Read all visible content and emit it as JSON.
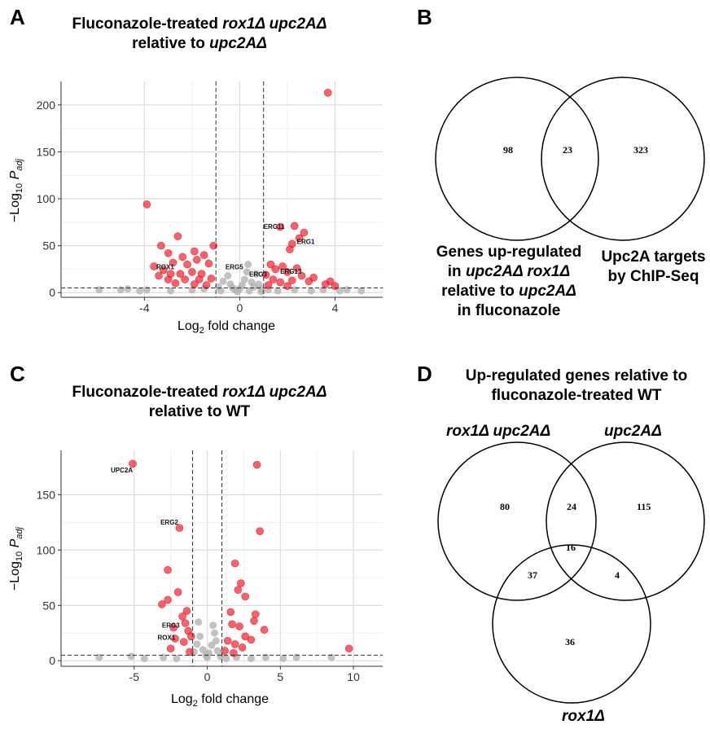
{
  "panels": {
    "A": {
      "letter": "A",
      "title_line1_pre": "Fluconazole-treated ",
      "title_line1_it": "rox1Δ upc2AΔ",
      "title_line2_pre": "relative to ",
      "title_line2_it": "upc2AΔ",
      "xlabel_main": "Log",
      "xlabel_sub": "2",
      "xlabel_rest": " fold change",
      "ylabel_main": "−Log",
      "ylabel_sub": "10",
      "ylabel_p": "P",
      "ylabel_adj": "adj"
    },
    "B": {
      "letter": "B",
      "left_label_l1": "Genes up-regulated",
      "left_label_l2a": "in ",
      "left_label_l2b": "upc2AΔ rox1Δ",
      "left_label_l3a": "relative to ",
      "left_label_l3b": "upc2AΔ",
      "left_label_l4": "in fluconazole",
      "right_label_l1": "Upc2A targets",
      "right_label_l2": "by ChIP-Seq",
      "counts": {
        "left_only": "98",
        "both": "23",
        "right_only": "323"
      }
    },
    "C": {
      "letter": "C",
      "title_line1_pre": "Fluconazole-treated ",
      "title_line1_it": "rox1Δ upc2AΔ",
      "title_line2": "relative to WT",
      "xlabel_main": "Log",
      "xlabel_sub": "2",
      "xlabel_rest": " fold change",
      "ylabel_main": "−Log",
      "ylabel_sub": "10",
      "ylabel_p": "P",
      "ylabel_adj": "adj"
    },
    "D": {
      "letter": "D",
      "title_l1": "Up-regulated genes relative to",
      "title_l2": "fluconazole-treated WT",
      "set1": "rox1Δ upc2AΔ",
      "set2": "upc2AΔ",
      "set3": "rox1Δ",
      "counts": {
        "s1_only": "80",
        "s1_s2": "24",
        "s2_only": "115",
        "s1_s3": "37",
        "all": "16",
        "s2_s3": "4",
        "s3_only": "36"
      }
    }
  },
  "chart_data": [
    {
      "type": "scatter",
      "panel": "A",
      "xlim": [
        -7.5,
        6
      ],
      "ylim": [
        -5,
        225
      ],
      "xticks": [
        -4,
        0,
        4
      ],
      "yticks": [
        0,
        50,
        100,
        150,
        200
      ],
      "vlines": [
        -1,
        1
      ],
      "hline": 5,
      "colors": {
        "significant": "#f0101e",
        "other": "#b3b3b3"
      },
      "gene_labels": [
        {
          "text": "ERG11",
          "x": 1.0,
          "y": 68
        },
        {
          "text": "ERG1",
          "x": 2.4,
          "y": 52
        },
        {
          "text": "ERG5",
          "x": -0.6,
          "y": 25
        },
        {
          "text": "ERG3",
          "x": 0.4,
          "y": 17
        },
        {
          "text": "ERG13",
          "x": 1.7,
          "y": 20
        },
        {
          "text": "ROX1",
          "x": -3.5,
          "y": 25
        }
      ],
      "significant_points": [
        [
          3.7,
          213
        ],
        [
          -3.9,
          94
        ],
        [
          2.3,
          71
        ],
        [
          1.7,
          70
        ],
        [
          2.7,
          64
        ],
        [
          2.5,
          58
        ],
        [
          2.2,
          52
        ],
        [
          2.1,
          46
        ],
        [
          -2.6,
          60
        ],
        [
          -3.3,
          50
        ],
        [
          -1.1,
          50
        ],
        [
          -1.9,
          44
        ],
        [
          -3.0,
          42
        ],
        [
          -2.4,
          38
        ],
        [
          -1.5,
          40
        ],
        [
          -3.6,
          28
        ],
        [
          -3.2,
          24
        ],
        [
          -2.8,
          32
        ],
        [
          -2.2,
          30
        ],
        [
          -1.8,
          35
        ],
        [
          -1.3,
          31
        ],
        [
          -2.0,
          22
        ],
        [
          -2.5,
          20
        ],
        [
          -1.6,
          20
        ],
        [
          -3.4,
          18
        ],
        [
          -3.0,
          14
        ],
        [
          -2.3,
          14
        ],
        [
          -1.2,
          15
        ],
        [
          -2.7,
          10
        ],
        [
          -1.9,
          9
        ],
        [
          -1.4,
          8
        ],
        [
          1.3,
          30
        ],
        [
          1.5,
          25
        ],
        [
          1.8,
          28
        ],
        [
          2.0,
          22
        ],
        [
          2.4,
          26
        ],
        [
          2.6,
          18
        ],
        [
          1.1,
          19
        ],
        [
          1.4,
          14
        ],
        [
          2.2,
          13
        ],
        [
          1.7,
          11
        ],
        [
          3.1,
          16
        ],
        [
          2.9,
          12
        ],
        [
          3.6,
          9
        ],
        [
          3.8,
          12
        ],
        [
          4.0,
          7
        ],
        [
          1.2,
          8
        ],
        [
          2.0,
          7
        ],
        [
          -1.7,
          14
        ],
        [
          -2.9,
          20
        ]
      ],
      "other_points": [
        [
          -5.9,
          3
        ],
        [
          -5.0,
          3
        ],
        [
          -4.7,
          4
        ],
        [
          -4.2,
          2
        ],
        [
          -3.9,
          3
        ],
        [
          -2.9,
          2
        ],
        [
          -2.0,
          3
        ],
        [
          -1.5,
          4
        ],
        [
          -0.9,
          6
        ],
        [
          -0.7,
          12
        ],
        [
          -0.5,
          18
        ],
        [
          -0.4,
          9
        ],
        [
          -0.3,
          5
        ],
        [
          -0.2,
          3
        ],
        [
          0,
          4
        ],
        [
          0.1,
          8
        ],
        [
          0.2,
          14
        ],
        [
          0.3,
          22
        ],
        [
          0.35,
          30
        ],
        [
          0.5,
          11
        ],
        [
          0.6,
          6
        ],
        [
          0.7,
          20
        ],
        [
          0.8,
          9
        ],
        [
          0.9,
          4
        ],
        [
          1.2,
          3
        ],
        [
          1.6,
          2
        ],
        [
          2.3,
          3
        ],
        [
          3.0,
          2
        ],
        [
          3.5,
          3
        ],
        [
          4.2,
          2
        ],
        [
          4.5,
          3
        ],
        [
          5.1,
          2
        ],
        [
          -0.8,
          2
        ],
        [
          -0.1,
          1
        ],
        [
          0.4,
          2
        ],
        [
          0.9,
          1
        ]
      ]
    },
    {
      "type": "scatter",
      "panel": "C",
      "xlim": [
        -10,
        12
      ],
      "ylim": [
        -5,
        190
      ],
      "xticks": [
        -5,
        0,
        5,
        10
      ],
      "yticks": [
        0,
        50,
        100,
        150
      ],
      "vlines": [
        -1,
        1
      ],
      "hline": 5,
      "colors": {
        "significant": "#f0101e",
        "other": "#b3b3b3"
      },
      "gene_labels": [
        {
          "text": "UPC2A",
          "x": -6.6,
          "y": 170
        },
        {
          "text": "ERG2",
          "x": -3.2,
          "y": 123
        },
        {
          "text": "ERG3",
          "x": -3.1,
          "y": 30
        },
        {
          "text": "ROX1",
          "x": -3.4,
          "y": 19
        }
      ],
      "significant_points": [
        [
          -5.1,
          178
        ],
        [
          3.4,
          177
        ],
        [
          -1.9,
          120
        ],
        [
          3.6,
          117
        ],
        [
          1.9,
          88
        ],
        [
          -2.7,
          82
        ],
        [
          2.3,
          70
        ],
        [
          2.1,
          64
        ],
        [
          -2.0,
          62
        ],
        [
          2.6,
          58
        ],
        [
          -3.1,
          51
        ],
        [
          -2.7,
          55
        ],
        [
          -1.4,
          45
        ],
        [
          -1.7,
          40
        ],
        [
          1.6,
          44
        ],
        [
          3.3,
          42
        ],
        [
          -1.5,
          34
        ],
        [
          -2.3,
          30
        ],
        [
          -1.3,
          27
        ],
        [
          1.7,
          33
        ],
        [
          2.2,
          31
        ],
        [
          2.6,
          22
        ],
        [
          3.2,
          36
        ],
        [
          3.9,
          28
        ],
        [
          -2.2,
          20
        ],
        [
          -1.6,
          17
        ],
        [
          1.4,
          18
        ],
        [
          1.9,
          15
        ],
        [
          2.4,
          12
        ],
        [
          3.0,
          19
        ],
        [
          -2.5,
          11
        ],
        [
          -1.2,
          8
        ],
        [
          1.2,
          9
        ],
        [
          1.8,
          7
        ],
        [
          9.7,
          11
        ],
        [
          -1.1,
          22
        ]
      ],
      "other_points": [
        [
          -7.4,
          3
        ],
        [
          -5.2,
          4
        ],
        [
          -4.3,
          2
        ],
        [
          -3.0,
          3
        ],
        [
          -2.1,
          2
        ],
        [
          -0.9,
          8
        ],
        [
          -0.7,
          15
        ],
        [
          -0.5,
          22
        ],
        [
          -0.3,
          10
        ],
        [
          -0.1,
          5
        ],
        [
          0,
          3
        ],
        [
          0.1,
          7
        ],
        [
          0.3,
          14
        ],
        [
          0.5,
          25
        ],
        [
          0.6,
          18
        ],
        [
          0.7,
          9
        ],
        [
          0.9,
          4
        ],
        [
          1.3,
          2
        ],
        [
          2.0,
          3
        ],
        [
          3.0,
          2
        ],
        [
          4.0,
          3
        ],
        [
          5.2,
          2
        ],
        [
          6.1,
          3
        ],
        [
          8.5,
          3
        ],
        [
          -0.6,
          35
        ],
        [
          0.4,
          32
        ]
      ]
    }
  ]
}
